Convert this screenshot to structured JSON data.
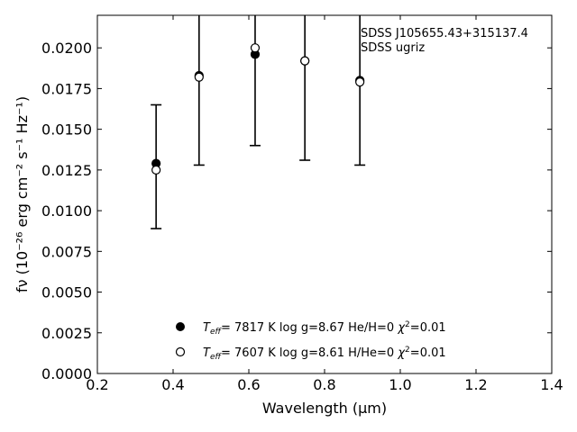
{
  "chart_data": {
    "type": "scatter",
    "title": "",
    "annotation_lines": [
      "SDSS J105655.43+315137.4",
      "SDSS ugriz"
    ],
    "xlabel": "Wavelength (μm)",
    "ylabel": "fν (10⁻²⁶ erg cm⁻² s⁻¹ Hz⁻¹)",
    "xlim": [
      0.2,
      1.4
    ],
    "ylim": [
      0.0,
      0.022
    ],
    "xticks": [
      0.2,
      0.4,
      0.6,
      0.8,
      1.0,
      1.2,
      1.4
    ],
    "xtick_labels": [
      "0.2",
      "0.4",
      "0.6",
      "0.8",
      "1.0",
      "1.2",
      "1.4"
    ],
    "yticks": [
      0.0,
      0.0025,
      0.005,
      0.0075,
      0.01,
      0.0125,
      0.015,
      0.0175,
      0.02
    ],
    "ytick_labels": [
      "0.0000",
      "0.0025",
      "0.0050",
      "0.0075",
      "0.0100",
      "0.0125",
      "0.0150",
      "0.0175",
      "0.0200"
    ],
    "grid": false,
    "legend_position": "lower-center",
    "observed": {
      "x": [
        0.3551,
        0.4686,
        0.6166,
        0.748,
        0.8932
      ],
      "y": [
        0.0125,
        0.0182,
        0.02,
        0.0192,
        0.0179
      ],
      "yerr_low": [
        0.0089,
        0.0128,
        0.014,
        0.0131,
        0.0128
      ],
      "yerr_high": [
        0.0165,
        0.0235,
        0.0235,
        0.0235,
        0.0235
      ]
    },
    "series": [
      {
        "name": "Teff= 7817 K log g=8.67 He/H=0 χ²=0.01",
        "marker": "filled-circle",
        "x": [
          0.3551,
          0.4686,
          0.6166,
          0.748,
          0.8932
        ],
        "y": [
          0.0129,
          0.0183,
          0.0196,
          0.0192,
          0.018
        ]
      },
      {
        "name": "Teff= 7607 K log g=8.61 H/He=0 χ²=0.01",
        "marker": "open-circle",
        "x": [
          0.3551,
          0.4686,
          0.6166,
          0.748,
          0.8932
        ],
        "y": [
          0.0125,
          0.0182,
          0.02,
          0.0192,
          0.0179
        ]
      }
    ],
    "legend": [
      {
        "teff": "7817",
        "logg": "8.67",
        "comp": "He/H=0",
        "chi2": "0.01"
      },
      {
        "teff": "7607",
        "logg": "8.61",
        "comp": "H/He=0",
        "chi2": "0.01"
      }
    ]
  }
}
